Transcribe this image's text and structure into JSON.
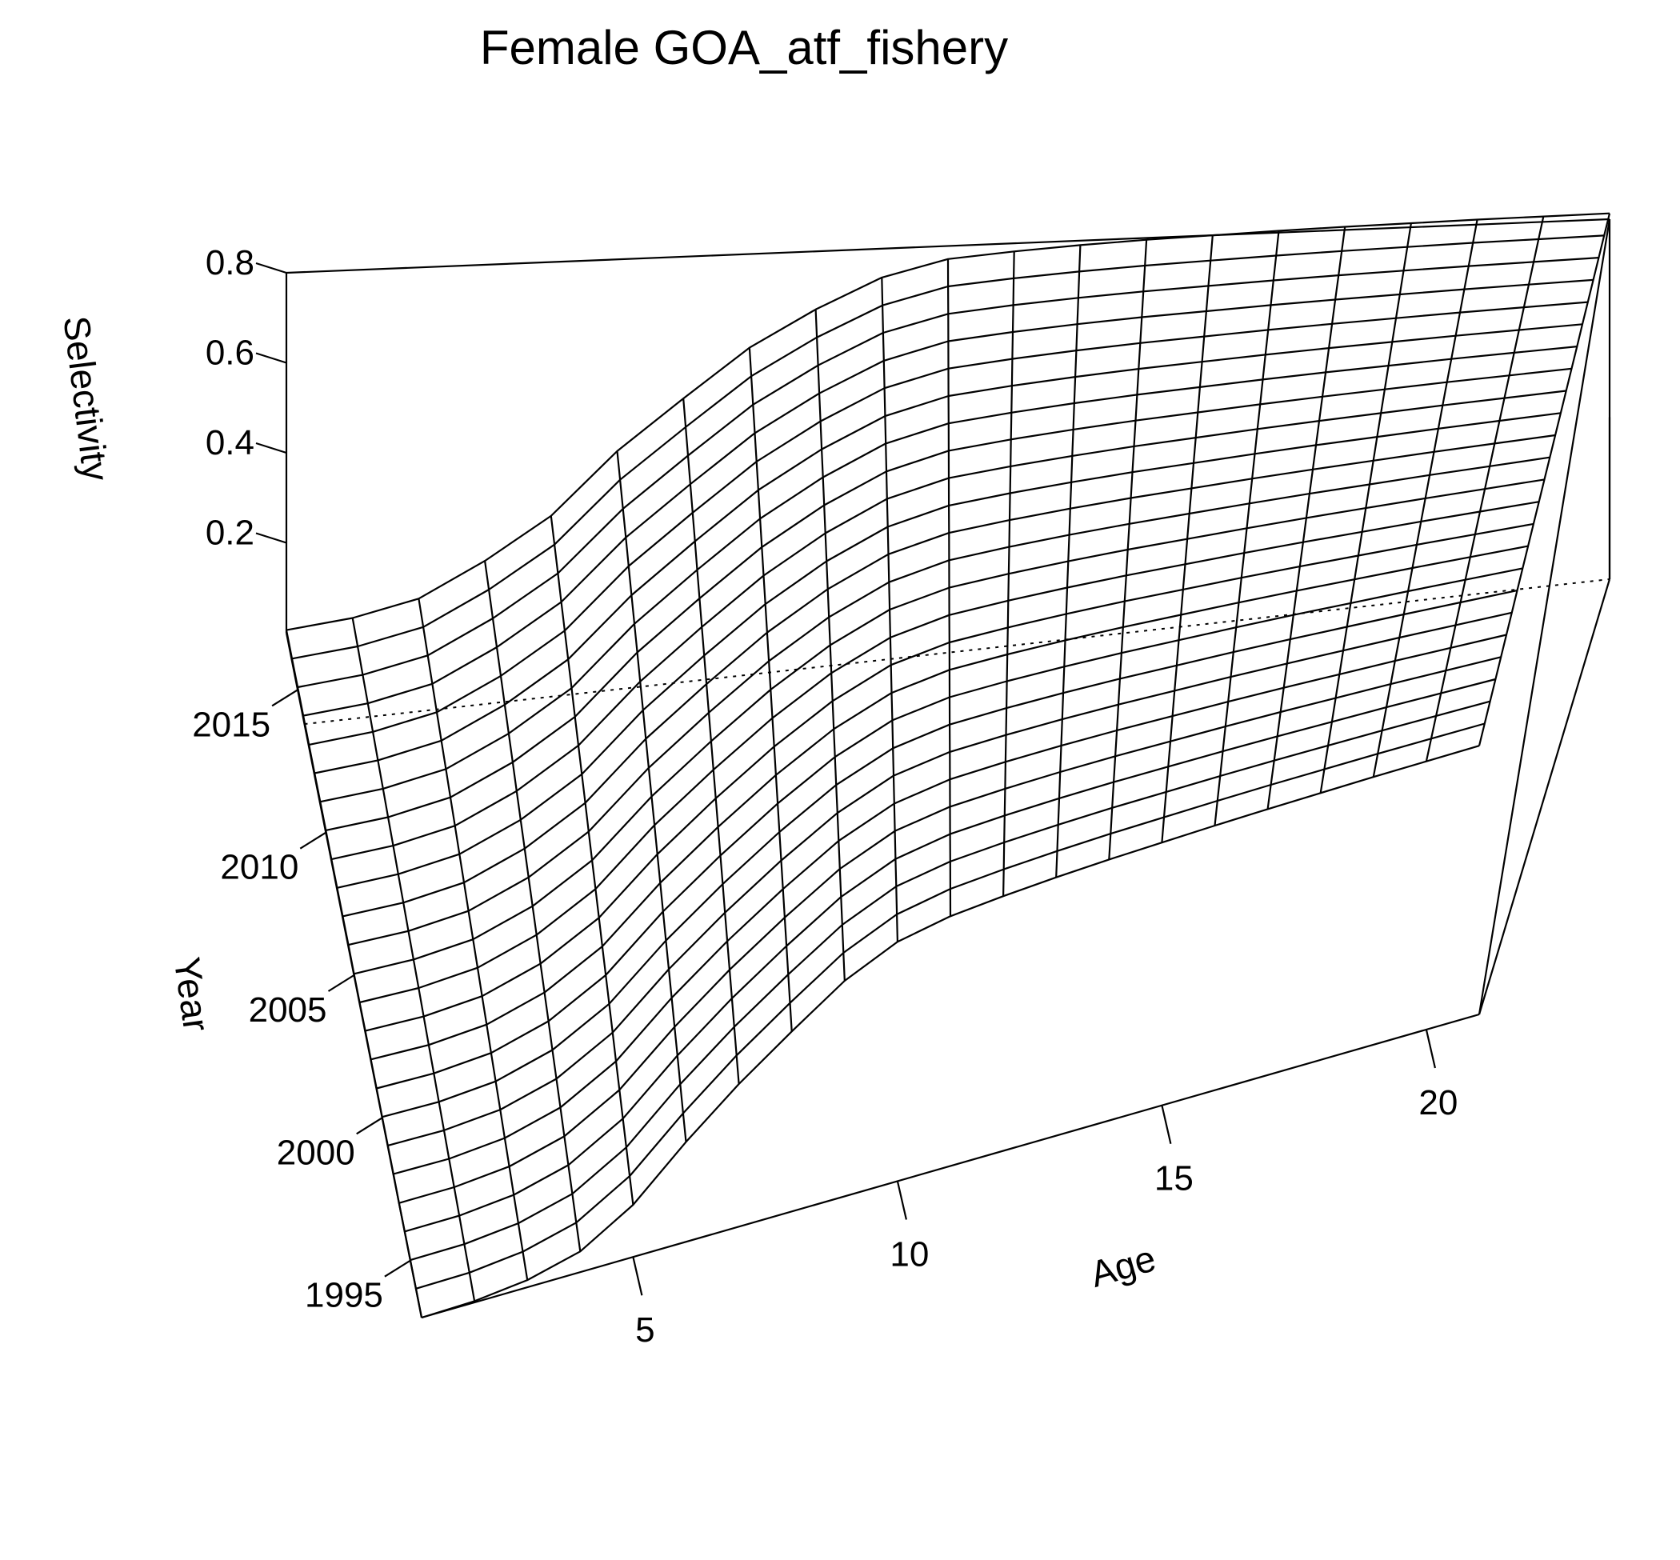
{
  "chart_data": {
    "type": "surface",
    "title": "Female GOA_atf_fishery",
    "xlabel": "Age",
    "ylabel": "Year",
    "zlabel": "Selectivity",
    "x_ticks": [
      5,
      10,
      15,
      20
    ],
    "y_ticks": [
      1995,
      2000,
      2005,
      2010,
      2015
    ],
    "z_ticks": [
      0.2,
      0.4,
      0.6,
      0.8
    ],
    "x_range": [
      1,
      21
    ],
    "y_range": [
      1993,
      2017
    ],
    "z_range": [
      0,
      0.8
    ],
    "grid": false,
    "ages": [
      1,
      2,
      3,
      4,
      5,
      6,
      7,
      8,
      9,
      10,
      11,
      12,
      13,
      14,
      15,
      16,
      17,
      18,
      19,
      20,
      21
    ],
    "years": [
      1993,
      1994,
      1995,
      1996,
      1997,
      1998,
      1999,
      2000,
      2001,
      2002,
      2003,
      2004,
      2005,
      2006,
      2007,
      2008,
      2009,
      2010,
      2011,
      2012,
      2013,
      2014,
      2015,
      2016,
      2017
    ],
    "selectivity_by_year": [
      [
        0.0,
        0.003,
        0.016,
        0.046,
        0.116,
        0.222,
        0.317,
        0.4,
        0.479,
        0.532,
        0.555,
        0.566,
        0.574,
        0.58,
        0.584,
        0.588,
        0.591,
        0.593,
        0.595,
        0.596,
        0.597
      ],
      [
        0.001,
        0.004,
        0.018,
        0.05,
        0.121,
        0.228,
        0.324,
        0.408,
        0.487,
        0.54,
        0.564,
        0.575,
        0.583,
        0.589,
        0.593,
        0.597,
        0.6,
        0.602,
        0.604,
        0.605,
        0.606
      ],
      [
        0.001,
        0.005,
        0.02,
        0.054,
        0.126,
        0.235,
        0.331,
        0.416,
        0.495,
        0.549,
        0.573,
        0.584,
        0.592,
        0.598,
        0.602,
        0.606,
        0.609,
        0.611,
        0.613,
        0.614,
        0.615
      ],
      [
        0.001,
        0.006,
        0.022,
        0.058,
        0.131,
        0.241,
        0.338,
        0.424,
        0.503,
        0.557,
        0.582,
        0.593,
        0.601,
        0.607,
        0.611,
        0.615,
        0.618,
        0.62,
        0.622,
        0.623,
        0.624
      ],
      [
        0.001,
        0.007,
        0.024,
        0.062,
        0.136,
        0.247,
        0.345,
        0.432,
        0.511,
        0.566,
        0.591,
        0.602,
        0.61,
        0.616,
        0.62,
        0.624,
        0.627,
        0.629,
        0.631,
        0.632,
        0.633
      ],
      [
        0.002,
        0.008,
        0.026,
        0.066,
        0.141,
        0.254,
        0.352,
        0.44,
        0.519,
        0.574,
        0.6,
        0.611,
        0.619,
        0.625,
        0.629,
        0.633,
        0.636,
        0.638,
        0.64,
        0.641,
        0.642
      ],
      [
        0.002,
        0.009,
        0.028,
        0.07,
        0.146,
        0.26,
        0.359,
        0.448,
        0.527,
        0.583,
        0.609,
        0.62,
        0.628,
        0.634,
        0.638,
        0.642,
        0.645,
        0.647,
        0.649,
        0.65,
        0.651
      ],
      [
        0.002,
        0.01,
        0.03,
        0.074,
        0.151,
        0.266,
        0.366,
        0.456,
        0.535,
        0.591,
        0.618,
        0.629,
        0.637,
        0.643,
        0.647,
        0.651,
        0.654,
        0.656,
        0.658,
        0.659,
        0.66
      ],
      [
        0.002,
        0.011,
        0.032,
        0.078,
        0.156,
        0.273,
        0.373,
        0.464,
        0.543,
        0.6,
        0.627,
        0.638,
        0.646,
        0.652,
        0.656,
        0.66,
        0.663,
        0.665,
        0.667,
        0.668,
        0.669
      ],
      [
        0.003,
        0.012,
        0.034,
        0.082,
        0.161,
        0.279,
        0.38,
        0.472,
        0.551,
        0.608,
        0.636,
        0.647,
        0.655,
        0.661,
        0.665,
        0.669,
        0.672,
        0.674,
        0.676,
        0.677,
        0.678
      ],
      [
        0.003,
        0.013,
        0.036,
        0.086,
        0.166,
        0.285,
        0.387,
        0.48,
        0.559,
        0.617,
        0.645,
        0.656,
        0.664,
        0.67,
        0.674,
        0.678,
        0.681,
        0.683,
        0.685,
        0.686,
        0.687
      ],
      [
        0.003,
        0.014,
        0.038,
        0.09,
        0.171,
        0.292,
        0.394,
        0.488,
        0.567,
        0.625,
        0.654,
        0.665,
        0.673,
        0.679,
        0.683,
        0.687,
        0.69,
        0.692,
        0.694,
        0.695,
        0.696
      ],
      [
        0.003,
        0.015,
        0.04,
        0.094,
        0.176,
        0.298,
        0.401,
        0.496,
        0.575,
        0.634,
        0.663,
        0.674,
        0.682,
        0.688,
        0.692,
        0.696,
        0.699,
        0.701,
        0.703,
        0.704,
        0.705
      ],
      [
        0.004,
        0.016,
        0.042,
        0.098,
        0.181,
        0.304,
        0.408,
        0.504,
        0.583,
        0.642,
        0.672,
        0.683,
        0.691,
        0.697,
        0.701,
        0.705,
        0.708,
        0.71,
        0.712,
        0.713,
        0.714
      ],
      [
        0.004,
        0.017,
        0.044,
        0.102,
        0.186,
        0.311,
        0.415,
        0.512,
        0.591,
        0.651,
        0.681,
        0.692,
        0.7,
        0.706,
        0.71,
        0.714,
        0.717,
        0.719,
        0.721,
        0.722,
        0.723
      ],
      [
        0.004,
        0.018,
        0.046,
        0.106,
        0.191,
        0.317,
        0.422,
        0.52,
        0.599,
        0.659,
        0.69,
        0.701,
        0.709,
        0.715,
        0.719,
        0.723,
        0.726,
        0.728,
        0.73,
        0.731,
        0.732
      ],
      [
        0.004,
        0.019,
        0.048,
        0.11,
        0.196,
        0.323,
        0.429,
        0.528,
        0.607,
        0.668,
        0.699,
        0.71,
        0.718,
        0.724,
        0.728,
        0.732,
        0.735,
        0.737,
        0.739,
        0.74,
        0.741
      ],
      [
        0.005,
        0.02,
        0.05,
        0.114,
        0.201,
        0.33,
        0.436,
        0.536,
        0.615,
        0.676,
        0.708,
        0.719,
        0.727,
        0.733,
        0.737,
        0.741,
        0.744,
        0.746,
        0.748,
        0.749,
        0.75
      ],
      [
        0.005,
        0.021,
        0.052,
        0.118,
        0.206,
        0.336,
        0.443,
        0.544,
        0.623,
        0.685,
        0.717,
        0.728,
        0.736,
        0.742,
        0.746,
        0.75,
        0.753,
        0.755,
        0.757,
        0.758,
        0.759
      ],
      [
        0.005,
        0.022,
        0.054,
        0.122,
        0.211,
        0.342,
        0.45,
        0.552,
        0.631,
        0.693,
        0.726,
        0.737,
        0.745,
        0.751,
        0.755,
        0.759,
        0.762,
        0.764,
        0.766,
        0.767,
        0.768
      ],
      [
        0.005,
        0.023,
        0.056,
        0.126,
        0.216,
        0.349,
        0.457,
        0.56,
        0.639,
        0.702,
        0.735,
        0.746,
        0.754,
        0.76,
        0.764,
        0.768,
        0.771,
        0.773,
        0.775,
        0.776,
        0.777
      ],
      [
        0.006,
        0.024,
        0.058,
        0.13,
        0.221,
        0.355,
        0.464,
        0.568,
        0.647,
        0.71,
        0.744,
        0.755,
        0.763,
        0.769,
        0.773,
        0.777,
        0.78,
        0.782,
        0.784,
        0.785,
        0.786
      ],
      [
        0.006,
        0.025,
        0.06,
        0.134,
        0.226,
        0.361,
        0.471,
        0.576,
        0.655,
        0.719,
        0.753,
        0.764,
        0.772,
        0.778,
        0.782,
        0.786,
        0.789,
        0.791,
        0.793,
        0.794,
        0.795
      ],
      [
        0.006,
        0.026,
        0.062,
        0.138,
        0.231,
        0.368,
        0.478,
        0.584,
        0.663,
        0.727,
        0.762,
        0.773,
        0.781,
        0.787,
        0.791,
        0.795,
        0.798,
        0.8,
        0.802,
        0.803,
        0.804
      ],
      [
        0.006,
        0.027,
        0.064,
        0.142,
        0.236,
        0.374,
        0.485,
        0.592,
        0.671,
        0.736,
        0.771,
        0.782,
        0.79,
        0.796,
        0.8,
        0.804,
        0.807,
        0.809,
        0.811,
        0.812,
        0.813
      ]
    ]
  }
}
